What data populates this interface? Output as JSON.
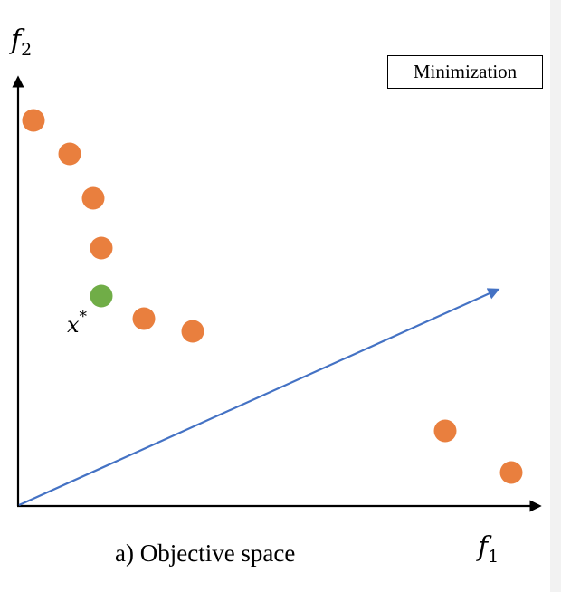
{
  "diagram": {
    "x_axis_var": "f",
    "x_axis_sub": "1",
    "y_axis_var": "f",
    "y_axis_sub": "2",
    "box_label": "Minimization",
    "caption": "a) Objective space",
    "point_label_var": "x",
    "point_label_sup": "*"
  },
  "colors": {
    "orange_point": "#e97f3e",
    "green_point": "#70ad47",
    "arrow": "#4472c4",
    "axes": "#000000"
  }
}
